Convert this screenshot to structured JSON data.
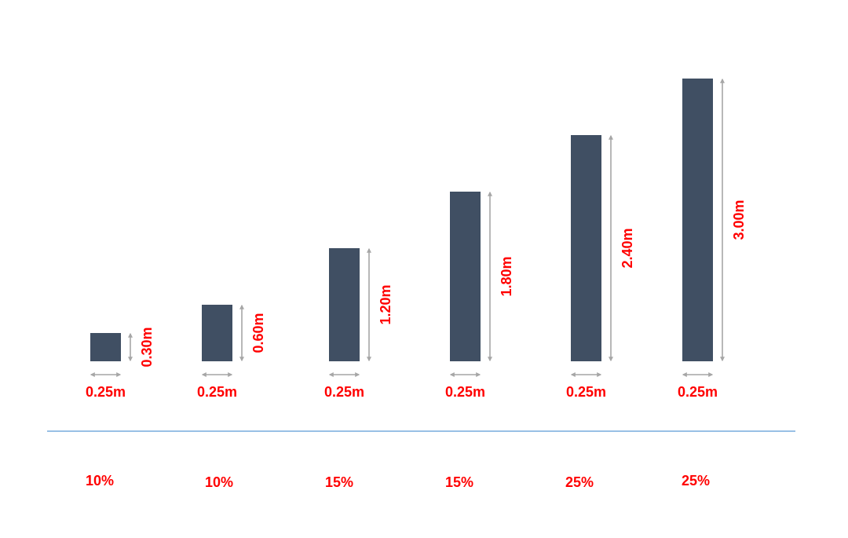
{
  "colors": {
    "column": "#404f63",
    "arrow": "#a6a6a6",
    "label": "#ff0000",
    "divider": "#5b9bd5"
  },
  "columns": [
    {
      "width_label": "0.25m",
      "height_label": "0.30m",
      "height_m": 0.3,
      "percent_label": "10%"
    },
    {
      "width_label": "0.25m",
      "height_label": "0.60m",
      "height_m": 0.6,
      "percent_label": "10%"
    },
    {
      "width_label": "0.25m",
      "height_label": "1.20m",
      "height_m": 1.2,
      "percent_label": "15%"
    },
    {
      "width_label": "0.25m",
      "height_label": "1.80m",
      "height_m": 1.8,
      "percent_label": "15%"
    },
    {
      "width_label": "0.25m",
      "height_label": "2.40m",
      "height_m": 2.4,
      "percent_label": "25%"
    },
    {
      "width_label": "0.25m",
      "height_label": "3.00m",
      "height_m": 3.0,
      "percent_label": "25%"
    }
  ]
}
